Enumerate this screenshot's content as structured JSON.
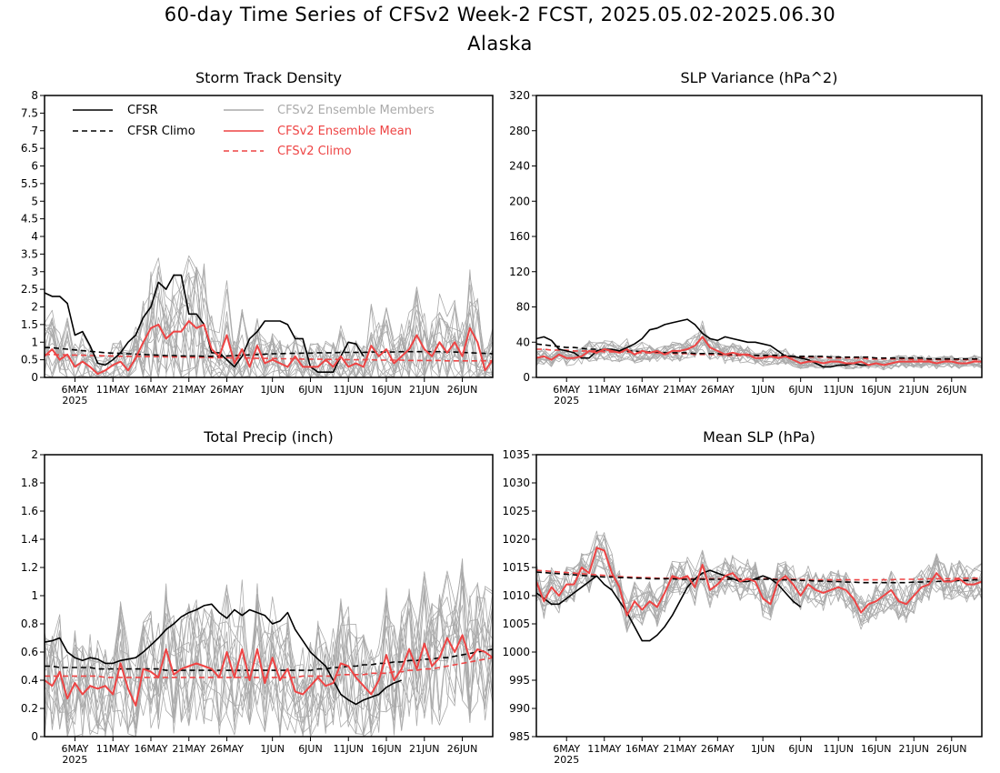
{
  "figure": {
    "title": "60-day Time Series of CFSv2 Week-2 FCST, 2025.05.02-2025.06.30",
    "subtitle": "Alaska"
  },
  "colors": {
    "cfsr": "#000000",
    "ensemble_members": "#aaaaaa",
    "ensemble_mean": "#ee4444",
    "cfsv2_climo": "#ee4444"
  },
  "legend": {
    "cfsr": "CFSR",
    "cfsr_climo": "CFSR Climo",
    "members": "CFSv2 Ensemble Members",
    "ens_mean": "CFSv2 Ensemble Mean",
    "cfsv2_climo": "CFSv2 Climo"
  },
  "x_axis": {
    "start": "2025-05-02",
    "end": "2025-06-30",
    "tick_labels": [
      "6MAY",
      "11MAY",
      "16MAY",
      "21MAY",
      "26MAY",
      "1JUN",
      "6JUN",
      "11JUN",
      "16JUN",
      "21JUN",
      "26JUN"
    ],
    "tick_dates": [
      "2025-05-06",
      "2025-05-11",
      "2025-05-16",
      "2025-05-21",
      "2025-05-26",
      "2025-06-01",
      "2025-06-06",
      "2025-06-11",
      "2025-06-16",
      "2025-06-21",
      "2025-06-26"
    ],
    "year_label": "2025"
  },
  "chart_data": [
    {
      "type": "line",
      "title": "Storm Track Density",
      "ylim": [
        0,
        8
      ],
      "yticks": [
        "0",
        "0.5",
        "1",
        "1.5",
        "2",
        "2.5",
        "3",
        "3.5",
        "4",
        "4.5",
        "5",
        "5.5",
        "6",
        "6.5",
        "7",
        "7.5",
        "8"
      ],
      "cfsr": [
        2.4,
        2.3,
        2.3,
        2.1,
        1.2,
        1.3,
        0.9,
        0.4,
        0.35,
        0.5,
        0.7,
        1.0,
        1.2,
        1.7,
        2.0,
        2.7,
        2.5,
        2.9,
        2.9,
        1.8,
        1.8,
        1.5,
        0.7,
        0.7,
        0.5,
        0.3,
        0.6,
        1.1,
        1.3,
        1.6,
        1.6,
        1.6,
        1.5,
        1.1,
        1.1,
        0.3,
        0.15,
        0.15,
        0.15,
        0.6,
        1.0,
        0.95,
        0.6
      ],
      "cfsr_climo": [
        0.85,
        0.84,
        0.82,
        0.8,
        0.78,
        0.76,
        0.74,
        0.72,
        0.7,
        0.69,
        0.68,
        0.67,
        0.66,
        0.65,
        0.64,
        0.63,
        0.62,
        0.62,
        0.61,
        0.61,
        0.61,
        0.6,
        0.6,
        0.6,
        0.61,
        0.62,
        0.63,
        0.64,
        0.65,
        0.66,
        0.67,
        0.67,
        0.68,
        0.68,
        0.69,
        0.69,
        0.7,
        0.7,
        0.7,
        0.71,
        0.71,
        0.71,
        0.71,
        0.72,
        0.72,
        0.72,
        0.72,
        0.73,
        0.73,
        0.73,
        0.73,
        0.73,
        0.73,
        0.72,
        0.72,
        0.71,
        0.7,
        0.69,
        0.68,
        0.67
      ],
      "ens_mean": [
        0.6,
        0.8,
        0.5,
        0.65,
        0.3,
        0.45,
        0.3,
        0.1,
        0.2,
        0.35,
        0.45,
        0.2,
        0.55,
        1.0,
        1.4,
        1.5,
        1.1,
        1.3,
        1.3,
        1.6,
        1.4,
        1.5,
        0.8,
        0.6,
        1.2,
        0.4,
        0.8,
        0.3,
        0.9,
        0.4,
        0.5,
        0.4,
        0.3,
        0.6,
        0.3,
        0.3,
        0.3,
        0.5,
        0.3,
        0.6,
        0.3,
        0.4,
        0.3,
        0.9,
        0.6,
        0.8,
        0.4,
        0.6,
        0.8,
        1.2,
        0.8,
        0.6,
        1.0,
        0.7,
        1.0,
        0.6,
        1.4,
        1.0,
        0.2,
        0.5
      ],
      "cfsv2_climo": [
        0.65,
        0.65,
        0.64,
        0.64,
        0.63,
        0.63,
        0.62,
        0.62,
        0.61,
        0.61,
        0.6,
        0.6,
        0.6,
        0.59,
        0.59,
        0.59,
        0.58,
        0.58,
        0.58,
        0.57,
        0.57,
        0.57,
        0.56,
        0.56,
        0.56,
        0.55,
        0.55,
        0.55,
        0.54,
        0.54,
        0.54,
        0.53,
        0.53,
        0.53,
        0.52,
        0.52,
        0.52,
        0.51,
        0.51,
        0.51,
        0.5,
        0.5,
        0.5,
        0.5,
        0.49,
        0.49,
        0.49,
        0.49,
        0.48,
        0.48,
        0.48,
        0.48,
        0.48,
        0.47,
        0.47,
        0.47,
        0.47,
        0.47,
        0.47,
        0.47
      ],
      "members": {
        "count": 16,
        "spread": 1.0,
        "multiplicative": true,
        "min": 0
      }
    },
    {
      "type": "line",
      "title": "SLP Variance (hPa^2)",
      "ylim": [
        0,
        320
      ],
      "yticks": [
        "0",
        "40",
        "80",
        "120",
        "160",
        "200",
        "240",
        "280",
        "320"
      ],
      "cfsr": [
        44,
        46,
        42,
        32,
        30,
        28,
        22,
        22,
        30,
        32,
        32,
        30,
        34,
        38,
        44,
        54,
        56,
        60,
        62,
        64,
        66,
        60,
        50,
        44,
        42,
        46,
        44,
        42,
        40,
        40,
        38,
        36,
        30,
        24,
        24,
        22,
        20,
        16,
        12,
        12,
        14,
        14,
        16,
        14,
        14
      ],
      "cfsr_climo": [
        38,
        37,
        36,
        35,
        34,
        34,
        33,
        32,
        32,
        31,
        31,
        30,
        30,
        30,
        29,
        29,
        29,
        28,
        28,
        28,
        28,
        27,
        27,
        27,
        27,
        26,
        26,
        26,
        26,
        25,
        25,
        25,
        25,
        25,
        24,
        24,
        24,
        24,
        24,
        23,
        23,
        23,
        23,
        23,
        23,
        22,
        22,
        22,
        22,
        22,
        22,
        22,
        21,
        21,
        21,
        21,
        21,
        21,
        21,
        21
      ],
      "ens_mean": [
        22,
        24,
        20,
        26,
        22,
        22,
        24,
        30,
        28,
        32,
        30,
        28,
        32,
        26,
        30,
        28,
        30,
        26,
        30,
        30,
        32,
        36,
        46,
        34,
        30,
        26,
        28,
        26,
        26,
        22,
        22,
        24,
        22,
        24,
        20,
        16,
        18,
        18,
        16,
        18,
        18,
        16,
        16,
        18,
        14,
        16,
        14,
        16,
        18,
        18,
        18,
        18,
        18,
        16,
        18,
        18,
        16,
        16,
        18,
        18
      ],
      "cfsv2_climo": [
        32,
        32,
        31,
        31,
        31,
        30,
        30,
        30,
        30,
        29,
        29,
        29,
        29,
        28,
        28,
        28,
        28,
        27,
        27,
        27,
        27,
        26,
        26,
        26,
        26,
        25,
        25,
        25,
        25,
        25,
        24,
        24,
        24,
        24,
        23,
        23,
        23,
        23,
        23,
        22,
        22,
        22,
        22,
        22,
        21,
        21,
        21,
        21,
        21,
        21,
        20,
        20,
        20,
        20,
        20,
        20,
        20,
        20,
        20,
        20
      ],
      "members": {
        "count": 16,
        "spread": 0.4,
        "multiplicative": true,
        "min": 0
      }
    },
    {
      "type": "line",
      "title": "Total Precip (inch)",
      "ylim": [
        0,
        2
      ],
      "yticks": [
        "0",
        "0.2",
        "0.4",
        "0.6",
        "0.8",
        "1",
        "1.2",
        "1.4",
        "1.6",
        "1.8",
        "2"
      ],
      "cfsr": [
        0.67,
        0.68,
        0.7,
        0.6,
        0.56,
        0.54,
        0.56,
        0.55,
        0.52,
        0.52,
        0.54,
        0.55,
        0.56,
        0.6,
        0.65,
        0.7,
        0.76,
        0.8,
        0.85,
        0.88,
        0.9,
        0.93,
        0.94,
        0.88,
        0.84,
        0.9,
        0.86,
        0.9,
        0.88,
        0.86,
        0.8,
        0.82,
        0.88,
        0.76,
        0.68,
        0.6,
        0.55,
        0.5,
        0.4,
        0.3,
        0.26,
        0.23,
        0.26,
        0.28,
        0.3,
        0.35,
        0.38,
        0.4
      ],
      "cfsr_climo": [
        0.5,
        0.5,
        0.49,
        0.49,
        0.49,
        0.49,
        0.49,
        0.48,
        0.48,
        0.48,
        0.48,
        0.48,
        0.48,
        0.48,
        0.48,
        0.48,
        0.47,
        0.47,
        0.47,
        0.47,
        0.47,
        0.47,
        0.47,
        0.47,
        0.47,
        0.47,
        0.47,
        0.47,
        0.47,
        0.47,
        0.47,
        0.47,
        0.47,
        0.47,
        0.47,
        0.47,
        0.48,
        0.48,
        0.49,
        0.49,
        0.5,
        0.5,
        0.51,
        0.51,
        0.52,
        0.52,
        0.53,
        0.53,
        0.54,
        0.54,
        0.55,
        0.55,
        0.56,
        0.56,
        0.57,
        0.58,
        0.59,
        0.6,
        0.61,
        0.62
      ],
      "ens_mean": [
        0.4,
        0.36,
        0.46,
        0.27,
        0.38,
        0.3,
        0.36,
        0.34,
        0.36,
        0.3,
        0.52,
        0.34,
        0.22,
        0.48,
        0.46,
        0.42,
        0.62,
        0.44,
        0.48,
        0.5,
        0.52,
        0.5,
        0.48,
        0.42,
        0.6,
        0.42,
        0.62,
        0.4,
        0.62,
        0.38,
        0.56,
        0.4,
        0.48,
        0.32,
        0.3,
        0.36,
        0.42,
        0.36,
        0.38,
        0.52,
        0.5,
        0.42,
        0.36,
        0.3,
        0.4,
        0.58,
        0.4,
        0.48,
        0.62,
        0.48,
        0.66,
        0.5,
        0.56,
        0.7,
        0.6,
        0.72,
        0.55,
        0.62,
        0.6,
        0.56
      ],
      "cfsv2_climo": [
        0.43,
        0.43,
        0.43,
        0.43,
        0.43,
        0.43,
        0.43,
        0.43,
        0.42,
        0.42,
        0.42,
        0.42,
        0.42,
        0.42,
        0.42,
        0.42,
        0.42,
        0.42,
        0.42,
        0.42,
        0.42,
        0.42,
        0.42,
        0.42,
        0.42,
        0.42,
        0.42,
        0.42,
        0.42,
        0.42,
        0.42,
        0.42,
        0.42,
        0.42,
        0.43,
        0.43,
        0.43,
        0.43,
        0.43,
        0.44,
        0.44,
        0.44,
        0.44,
        0.45,
        0.45,
        0.45,
        0.46,
        0.46,
        0.47,
        0.47,
        0.48,
        0.48,
        0.49,
        0.5,
        0.51,
        0.52,
        0.53,
        0.54,
        0.55,
        0.56
      ],
      "members": {
        "count": 16,
        "spread": 0.5,
        "multiplicative": true,
        "min": 0
      }
    },
    {
      "type": "line",
      "title": "Mean SLP (hPa)",
      "ylim": [
        985,
        1035
      ],
      "yticks": [
        "985",
        "990",
        "995",
        "1000",
        "1005",
        "1010",
        "1015",
        "1020",
        "1025",
        "1030",
        "1035"
      ],
      "cfsr": [
        1010.5,
        1009.5,
        1008.5,
        1008.5,
        1009.5,
        1010.5,
        1011.5,
        1012.5,
        1013.5,
        1012.0,
        1011.0,
        1009.0,
        1007.0,
        1004.5,
        1002.0,
        1002.0,
        1003.0,
        1004.5,
        1006.5,
        1009.0,
        1011.5,
        1013.0,
        1014.0,
        1014.5,
        1014.0,
        1013.5,
        1013.0,
        1012.5,
        1012.5,
        1013.0,
        1013.5,
        1013.0,
        1012.0,
        1010.5,
        1009.0,
        1008.0
      ],
      "cfsr_climo": [
        1014.2,
        1014.1,
        1014.0,
        1013.9,
        1013.8,
        1013.7,
        1013.6,
        1013.5,
        1013.4,
        1013.3,
        1013.3,
        1013.2,
        1013.2,
        1013.1,
        1013.1,
        1013.0,
        1013.0,
        1013.0,
        1013.0,
        1012.9,
        1012.9,
        1012.9,
        1012.9,
        1012.9,
        1012.9,
        1012.9,
        1012.9,
        1012.9,
        1012.9,
        1012.9,
        1012.9,
        1012.9,
        1012.8,
        1012.8,
        1012.8,
        1012.7,
        1012.7,
        1012.6,
        1012.6,
        1012.5,
        1012.5,
        1012.4,
        1012.4,
        1012.3,
        1012.3,
        1012.3,
        1012.3,
        1012.3,
        1012.3,
        1012.3,
        1012.4,
        1012.4,
        1012.5,
        1012.5,
        1012.6,
        1012.6,
        1012.7,
        1012.7,
        1012.8,
        1012.8
      ],
      "ens_mean": [
        1012.5,
        1009.0,
        1011.5,
        1010.0,
        1012.0,
        1012.0,
        1015.0,
        1014.0,
        1018.5,
        1018.0,
        1014.0,
        1011.5,
        1006.5,
        1009.0,
        1007.5,
        1009.0,
        1008.0,
        1010.5,
        1013.5,
        1013.0,
        1013.5,
        1011.5,
        1015.5,
        1011.0,
        1012.0,
        1013.5,
        1014.0,
        1012.5,
        1013.0,
        1012.5,
        1009.5,
        1008.5,
        1012.5,
        1013.5,
        1012.0,
        1010.0,
        1012.0,
        1011.0,
        1010.5,
        1011.0,
        1011.5,
        1011.0,
        1009.5,
        1007.0,
        1008.5,
        1009.0,
        1010.0,
        1011.0,
        1009.0,
        1008.5,
        1010.0,
        1011.5,
        1012.0,
        1014.0,
        1012.5,
        1012.5,
        1013.0,
        1012.0,
        1012.0,
        1012.5
      ],
      "cfsv2_climo": [
        1014.5,
        1014.4,
        1014.3,
        1014.2,
        1014.1,
        1014.0,
        1013.9,
        1013.8,
        1013.7,
        1013.6,
        1013.5,
        1013.4,
        1013.3,
        1013.3,
        1013.2,
        1013.2,
        1013.1,
        1013.1,
        1013.1,
        1013.0,
        1013.0,
        1013.0,
        1013.0,
        1013.0,
        1013.0,
        1013.0,
        1013.0,
        1013.0,
        1013.0,
        1013.0,
        1013.0,
        1013.0,
        1012.9,
        1012.9,
        1012.9,
        1012.9,
        1012.8,
        1012.8,
        1012.8,
        1012.8,
        1012.8,
        1012.8,
        1012.8,
        1012.8,
        1012.8,
        1012.8,
        1012.8,
        1012.8,
        1012.9,
        1012.9,
        1012.9,
        1012.9,
        1013.0,
        1013.0,
        1013.0,
        1013.0,
        1013.1,
        1013.1,
        1013.1,
        1013.1
      ],
      "members": {
        "count": 16,
        "spread": 3.5,
        "multiplicative": false
      }
    }
  ]
}
